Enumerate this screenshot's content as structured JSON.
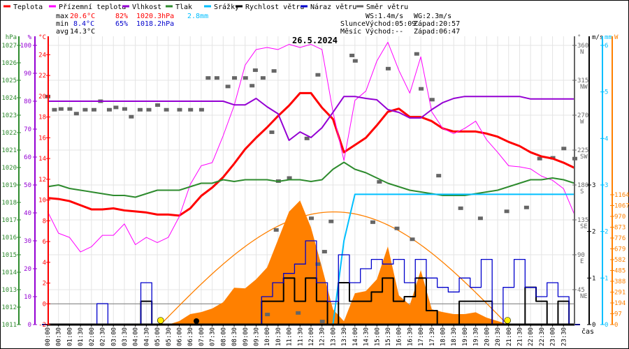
{
  "legend": [
    {
      "label": "Teplota",
      "color": "#ff0000"
    },
    {
      "label": "Přízemní teplota",
      "color": "#ff00ff"
    },
    {
      "label": "Vlhkost",
      "color": "#9400d3"
    },
    {
      "label": "Tlak",
      "color": "#2e8b2e"
    },
    {
      "label": "Srážky",
      "color": "#00bfff"
    },
    {
      "label": "Rychlost větru",
      "color": "#000000"
    },
    {
      "label": "Náraz větru",
      "color": "#0000cc"
    },
    {
      "label": "Směr větru",
      "color": "#666666"
    }
  ],
  "stats": {
    "max_label": "max",
    "max_temp": "20.6°C",
    "max_hum": "82%",
    "max_press": "1020.3hPa",
    "rain": "2.8mm",
    "min_label": "min",
    "min_temp": "8.4°C",
    "min_hum": "65%",
    "min_press": "1018.2hPa",
    "avg_label": "avg",
    "avg_temp": "14.3°C"
  },
  "astro": {
    "ws": "WS:1.4m/s",
    "wg": "WG:2.3m/s",
    "sun_label": "Slunce",
    "sunrise": "Východ:05:09",
    "sunset": "Západ:20:57",
    "moon_label": "Měsíc",
    "moonrise": "Východ:--",
    "moonset": "Západ:06:47",
    "sunrise_h": 5.15,
    "sunset_h": 20.95,
    "moonset_h": 6.78
  },
  "chart_data": {
    "type": "line",
    "title": "26.5.2024",
    "xlabel": "čas",
    "x_step_hours": 0.5,
    "x_ticks": [
      "00:00",
      "00:30",
      "01:00",
      "01:30",
      "02:00",
      "02:30",
      "03:00",
      "03:30",
      "04:00",
      "04:30",
      "05:00",
      "05:30",
      "06:00",
      "06:30",
      "07:00",
      "07:30",
      "08:00",
      "08:30",
      "09:00",
      "09:30",
      "10:00",
      "10:30",
      "11:00",
      "11:30",
      "12:00",
      "12:30",
      "13:00",
      "13:30",
      "14:00",
      "14:30",
      "15:00",
      "15:30",
      "16:00",
      "16:30",
      "17:00",
      "17:30",
      "18:00",
      "18:30",
      "19:00",
      "19:30",
      "20:00",
      "20:30",
      "21:00",
      "21:30",
      "22:00",
      "22:30",
      "23:00",
      "23:30"
    ],
    "axes": {
      "hPa": {
        "label": "hPa",
        "range": [
          1011,
          1027
        ],
        "ticks": [
          "1011",
          "1012",
          "1013",
          "1014",
          "1015",
          "1016",
          "1017",
          "1018",
          "1019",
          "1020",
          "1021",
          "1022",
          "1023",
          "1024",
          "1025",
          "1026",
          "1027"
        ],
        "color": "#2e8b2e"
      },
      "pct": {
        "label": "%",
        "range": [
          0,
          100
        ],
        "ticks": [
          "0",
          "10",
          "20",
          "30",
          "40",
          "50",
          "60",
          "70",
          "80",
          "90",
          "100"
        ],
        "color": "#9400d3"
      },
      "degC": {
        "label": "°C",
        "range": [
          -2,
          24
        ],
        "ticks": [
          "-2",
          "0",
          "2",
          "4",
          "6",
          "8",
          "10",
          "12",
          "14",
          "16",
          "18",
          "20",
          "22",
          "24"
        ],
        "color": "#ff0000"
      },
      "dir": {
        "label": "°",
        "range": [
          0,
          360
        ],
        "ticks": [
          {
            "v": "45",
            "s": "NE"
          },
          {
            "v": "90",
            "s": "E"
          },
          {
            "v": "135",
            "s": "SE"
          },
          {
            "v": "180",
            "s": "S"
          },
          {
            "v": "225",
            "s": "SW"
          },
          {
            "v": "270",
            "s": "W"
          },
          {
            "v": "315",
            "s": "NW"
          },
          {
            "v": "360",
            "s": "N"
          }
        ],
        "color": "#666666"
      },
      "ms": {
        "label": "m/s",
        "range": [
          0,
          6
        ],
        "ticks": [
          "0",
          "1",
          "2",
          "3"
        ],
        "color": "#000000"
      },
      "mm": {
        "label": "mm",
        "range": [
          0,
          6
        ],
        "ticks": [
          "0",
          "1",
          "2",
          "3",
          "4",
          "5",
          "6"
        ],
        "color": "#00bfff"
      },
      "W": {
        "label": "W",
        "range": [
          0,
          1164
        ],
        "ticks": [
          "0",
          "97",
          "194",
          "291",
          "388",
          "485",
          "582",
          "679",
          "776",
          "873",
          "970",
          "1067",
          "1164"
        ],
        "color": "#ff8000"
      }
    },
    "series": [
      {
        "name": "Teplota",
        "axis": "degC",
        "color": "#ff0000",
        "values": [
          10.2,
          10.1,
          9.9,
          9.5,
          9.1,
          9.1,
          9.2,
          9.0,
          8.9,
          8.8,
          8.6,
          8.6,
          8.5,
          9.2,
          10.4,
          11.2,
          12.2,
          13.5,
          14.9,
          16.0,
          17.0,
          18.1,
          19.1,
          20.3,
          20.3,
          18.9,
          17.8,
          14.6,
          15.3,
          16.0,
          17.2,
          18.5,
          18.8,
          18.0,
          18.0,
          17.6,
          16.9,
          16.6,
          16.6,
          16.6,
          16.4,
          16.1,
          15.6,
          15.2,
          14.6,
          14.2,
          14.0,
          13.6,
          13.1
        ]
      },
      {
        "name": "Přízemní teplota",
        "axis": "degC",
        "color": "#ff00ff",
        "values": [
          8.9,
          6.8,
          6.4,
          5.0,
          5.5,
          6.6,
          6.6,
          7.7,
          5.7,
          6.4,
          5.9,
          6.4,
          8.4,
          11.5,
          13.3,
          13.6,
          16.2,
          19.1,
          23.0,
          24.5,
          24.7,
          24.5,
          25.0,
          24.7,
          25.0,
          24.5,
          18.5,
          13.8,
          19.6,
          20.5,
          23.4,
          25.2,
          22.5,
          20.3,
          23.8,
          18.5,
          16.9,
          16.4,
          16.9,
          17.6,
          15.8,
          14.6,
          13.3,
          13.2,
          13.0,
          12.3,
          11.9,
          11.1,
          8.6
        ]
      },
      {
        "name": "Vlhkost",
        "axis": "pct",
        "color": "#9400d3",
        "values": [
          80,
          80,
          80,
          80,
          80,
          80,
          80,
          80,
          80,
          80,
          80,
          80,
          80,
          80,
          80,
          80,
          80,
          78.7,
          78.7,
          81,
          78,
          75.5,
          66,
          69,
          67,
          70.5,
          76,
          81.7,
          81.7,
          81,
          80.5,
          77,
          76,
          74,
          74,
          77,
          79.5,
          81,
          81.7,
          81.7,
          81.7,
          81.7,
          81.7,
          81.7,
          80.8,
          80.8,
          80.8,
          80.8,
          80.8
        ]
      },
      {
        "name": "Tlak",
        "axis": "hPa",
        "color": "#2e8b2e",
        "values": [
          1018.9,
          1019.0,
          1018.8,
          1018.7,
          1018.6,
          1018.5,
          1018.4,
          1018.4,
          1018.3,
          1018.5,
          1018.7,
          1018.7,
          1018.7,
          1018.9,
          1019.1,
          1019.1,
          1019.3,
          1019.2,
          1019.3,
          1019.3,
          1019.3,
          1019.2,
          1019.3,
          1019.3,
          1019.2,
          1019.3,
          1019.9,
          1020.3,
          1019.9,
          1019.7,
          1019.4,
          1019.1,
          1018.9,
          1018.7,
          1018.6,
          1018.5,
          1018.4,
          1018.4,
          1018.4,
          1018.5,
          1018.6,
          1018.7,
          1018.9,
          1019.1,
          1019.3,
          1019.3,
          1019.4,
          1019.3,
          1019.1
        ]
      },
      {
        "name": "Srážky",
        "axis": "mm",
        "color": "#00bfff",
        "values": [
          0,
          0,
          0,
          0,
          0,
          0,
          0,
          0,
          0,
          0,
          0,
          0,
          0,
          0,
          0,
          0,
          0,
          0,
          0,
          0,
          0,
          0,
          0,
          0,
          0,
          0,
          0,
          1.8,
          2.8,
          2.8,
          2.8,
          2.8,
          2.8,
          2.8,
          2.8,
          2.8,
          2.8,
          2.8,
          2.8,
          2.8,
          2.8,
          2.8,
          2.8,
          2.8,
          2.8,
          2.8,
          2.8,
          2.8,
          2.8
        ]
      },
      {
        "name": "Sluneční záření",
        "axis": "W",
        "color": "#ff8000",
        "values": [
          0,
          0,
          0,
          0,
          0,
          0,
          0,
          0,
          0,
          0,
          0,
          0,
          31,
          94,
          112,
          144,
          200,
          330,
          325,
          406,
          512,
          762,
          1012,
          1112,
          870,
          512,
          137,
          30,
          281,
          300,
          406,
          700,
          262,
          175,
          487,
          137,
          112,
          94,
          94,
          110,
          62,
          31,
          0,
          0,
          0,
          0,
          0,
          0,
          0
        ]
      },
      {
        "name": "Rychlost větru",
        "axis": "ms",
        "color": "#000000",
        "values": [
          0,
          0,
          0,
          0,
          0,
          0,
          0,
          0,
          0,
          0.5,
          0,
          0,
          0,
          0,
          0,
          0,
          0,
          0,
          0,
          0,
          0.5,
          0.5,
          1.0,
          0.5,
          1.0,
          0.5,
          0,
          0.9,
          0.5,
          0.5,
          0.7,
          1.0,
          0.5,
          0.6,
          1.0,
          0.3,
          0,
          0,
          0.5,
          0.5,
          0.5,
          0,
          0,
          0,
          0.8,
          0.5,
          0,
          0.5,
          0
        ]
      },
      {
        "name": "Náraz větru",
        "axis": "ms",
        "color": "#0000cc",
        "values": [
          0,
          0,
          0,
          0,
          0,
          0.45,
          0,
          0,
          0,
          0.9,
          0,
          0,
          0,
          0,
          0,
          0,
          0,
          0,
          0,
          0,
          0.6,
          0.9,
          1.1,
          1.3,
          1.8,
          0.9,
          0.5,
          1.5,
          0.9,
          1.2,
          1.4,
          1.3,
          1.4,
          0.9,
          1.4,
          1.0,
          0.8,
          0.7,
          1.0,
          0.8,
          1.4,
          0,
          0.8,
          1.4,
          0.8,
          0.6,
          0.9,
          0.6,
          0
        ]
      }
    ],
    "clear_sky_peak_W": 1010,
    "wind_direction": {
      "name": "Směr větru",
      "axis": "dir",
      "color": "#666666",
      "points": [
        [
          0.0,
          294
        ],
        [
          0.3,
          277
        ],
        [
          0.6,
          278
        ],
        [
          1.0,
          278
        ],
        [
          1.3,
          272
        ],
        [
          1.7,
          277
        ],
        [
          2.1,
          277
        ],
        [
          2.4,
          288
        ],
        [
          2.8,
          277
        ],
        [
          3.1,
          280
        ],
        [
          3.5,
          278
        ],
        [
          3.8,
          268
        ],
        [
          4.2,
          277
        ],
        [
          4.6,
          277
        ],
        [
          5.0,
          283
        ],
        [
          5.4,
          277
        ],
        [
          6.0,
          277
        ],
        [
          6.5,
          277
        ],
        [
          7.0,
          277
        ],
        [
          7.3,
          318
        ],
        [
          7.7,
          318
        ],
        [
          8.2,
          307
        ],
        [
          8.5,
          318
        ],
        [
          9.0,
          318
        ],
        [
          9.3,
          308
        ],
        [
          9.45,
          328
        ],
        [
          9.8,
          318
        ],
        [
          10.0,
          13
        ],
        [
          10.2,
          248
        ],
        [
          10.3,
          327
        ],
        [
          10.4,
          122
        ],
        [
          10.5,
          185
        ],
        [
          11.0,
          189
        ],
        [
          11.4,
          15
        ],
        [
          11.8,
          240
        ],
        [
          12.0,
          137
        ],
        [
          12.3,
          322
        ],
        [
          12.3,
          78
        ],
        [
          12.5,
          4
        ],
        [
          12.6,
          94
        ],
        [
          12.9,
          133
        ],
        [
          13.85,
          347
        ],
        [
          14.0,
          340
        ],
        [
          14.8,
          132
        ],
        [
          15.1,
          184
        ],
        [
          15.5,
          330
        ],
        [
          15.9,
          124
        ],
        [
          16.6,
          110
        ],
        [
          16.8,
          349
        ],
        [
          17.0,
          304
        ],
        [
          17.5,
          290
        ],
        [
          17.8,
          192
        ],
        [
          18.8,
          150
        ],
        [
          19.7,
          137
        ],
        [
          20.9,
          146
        ],
        [
          21.8,
          151
        ],
        [
          22.4,
          214
        ],
        [
          23.0,
          215
        ],
        [
          23.5,
          227
        ],
        [
          24.0,
          214
        ]
      ]
    }
  }
}
